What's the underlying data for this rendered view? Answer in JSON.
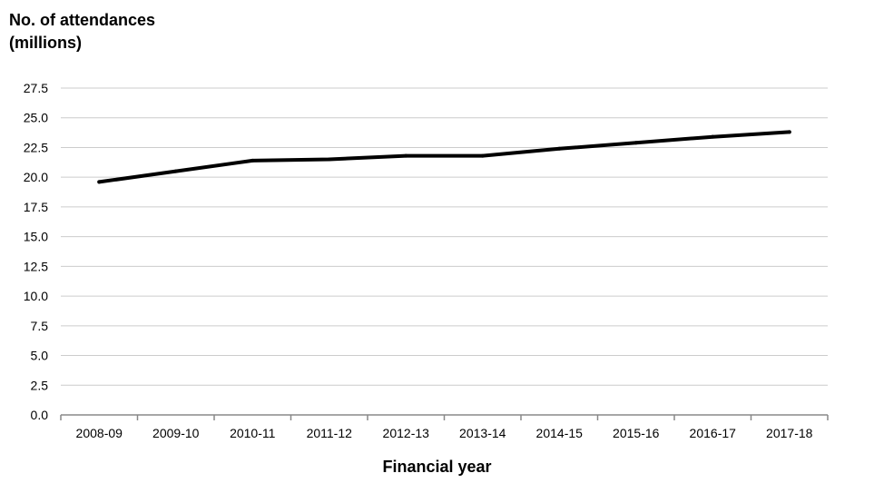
{
  "chart_data": {
    "type": "line",
    "title": "",
    "ylabel_lines": [
      "No. of attendances",
      "(millions)"
    ],
    "xlabel": "Financial year",
    "categories": [
      "2008-09",
      "2009-10",
      "2010-11",
      "2011-12",
      "2012-13",
      "2013-14",
      "2014-15",
      "2015-16",
      "2016-17",
      "2017-18"
    ],
    "series": [
      {
        "values": [
          19.6,
          20.5,
          21.4,
          21.5,
          21.8,
          21.8,
          22.4,
          22.9,
          23.4,
          23.8
        ]
      }
    ],
    "yticks": [
      "0.0",
      "2.5",
      "5.0",
      "7.5",
      "10.0",
      "12.5",
      "15.0",
      "17.5",
      "20.0",
      "22.5",
      "25.0",
      "27.5"
    ],
    "ylim": [
      0,
      27.5
    ],
    "grid": true,
    "legend": "none",
    "colors": {
      "line": "#000000",
      "grid": "#cccccc",
      "axis": "#888888"
    }
  }
}
